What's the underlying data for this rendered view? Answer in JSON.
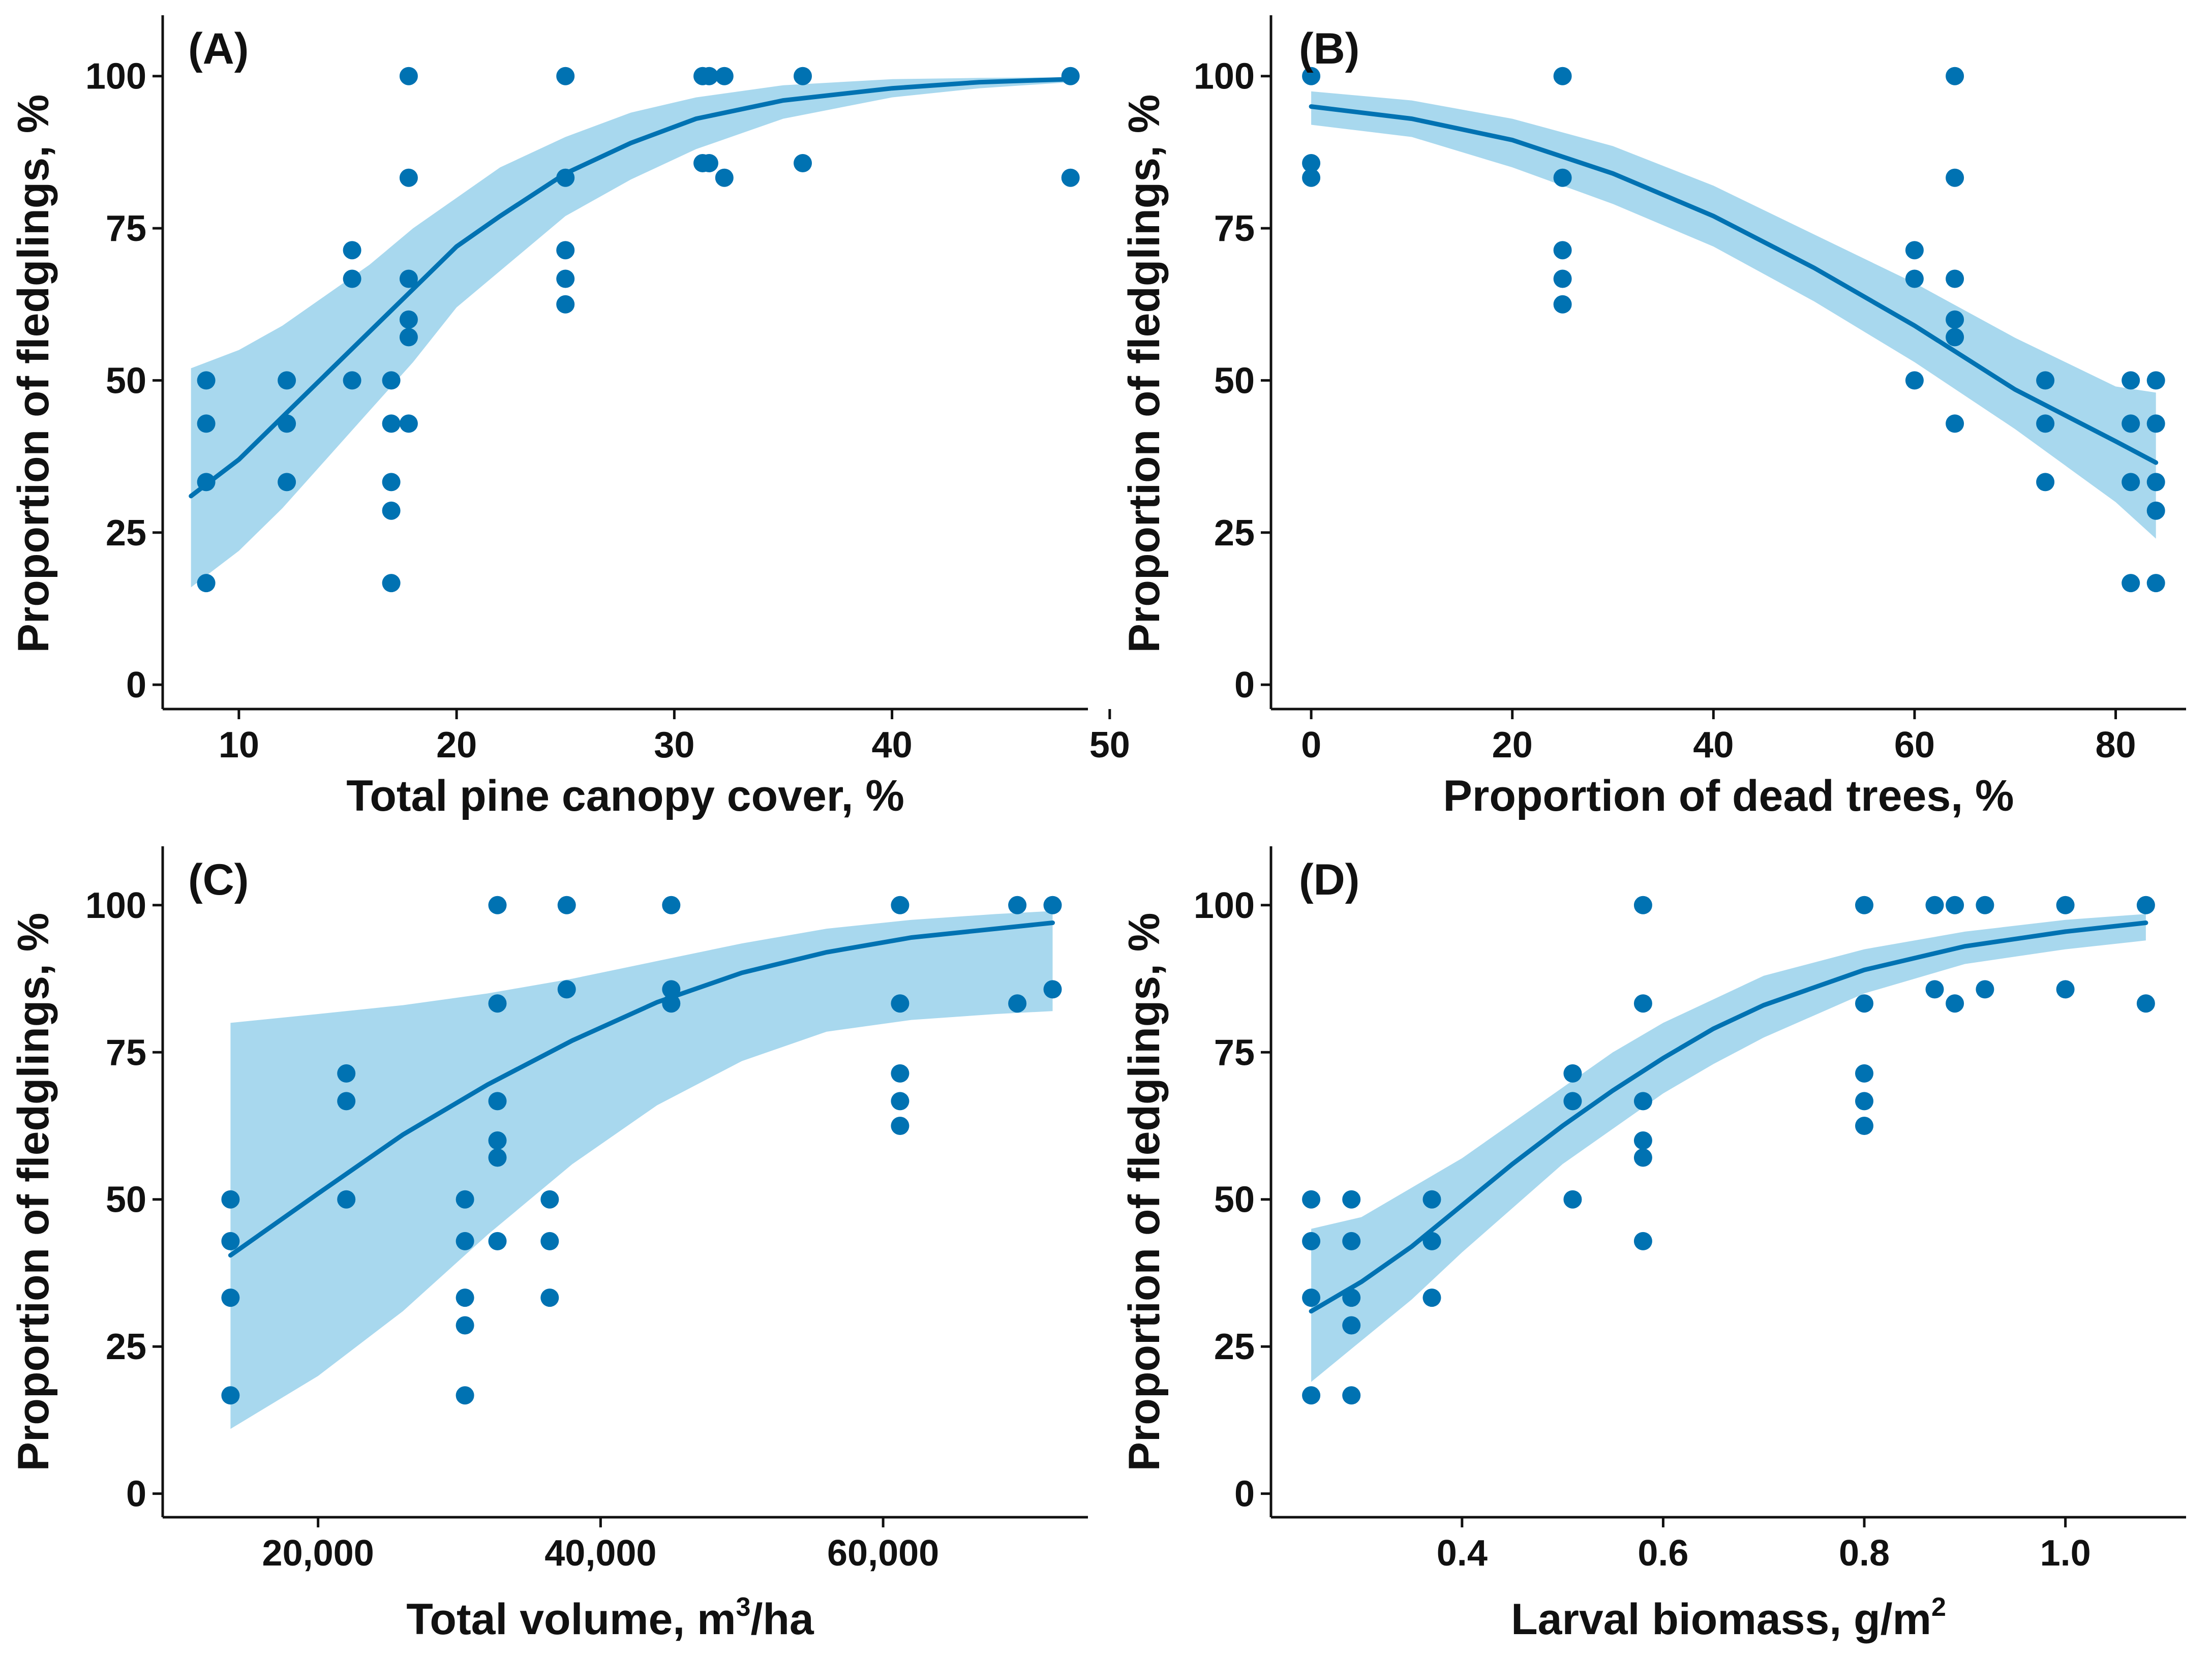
{
  "colors": {
    "point": "#0072b2",
    "line": "#0072b2",
    "band": "#a8d8ee"
  },
  "chart_data": [
    {
      "type": "scatter",
      "panel_label": "(A)",
      "xlabel": "Total pine canopy cover, %",
      "ylabel": "Proportion of fledglings, %",
      "xlim": [
        6.5,
        49
      ],
      "ylim": [
        -4,
        110
      ],
      "x_ticks": [
        10,
        20,
        30,
        40,
        50
      ],
      "x_tick_labels": [
        "10",
        "20",
        "30",
        "40",
        "50"
      ],
      "y_ticks": [
        0,
        25,
        50,
        75,
        100
      ],
      "y_tick_labels": [
        "0",
        "25",
        "50",
        "75",
        "100"
      ],
      "points": [
        [
          8.5,
          50
        ],
        [
          8.5,
          42.9
        ],
        [
          8.5,
          33.3
        ],
        [
          8.5,
          16.7
        ],
        [
          12.2,
          50
        ],
        [
          12.2,
          42.9
        ],
        [
          12.2,
          33.3
        ],
        [
          15.2,
          71.4
        ],
        [
          15.2,
          66.7
        ],
        [
          15.2,
          50
        ],
        [
          17.0,
          50
        ],
        [
          17.0,
          42.9
        ],
        [
          17.0,
          33.3
        ],
        [
          17.0,
          28.6
        ],
        [
          17.0,
          16.7
        ],
        [
          17.8,
          100
        ],
        [
          17.8,
          83.3
        ],
        [
          17.8,
          66.7
        ],
        [
          17.8,
          60
        ],
        [
          17.8,
          57.1
        ],
        [
          17.8,
          42.9
        ],
        [
          25.0,
          100
        ],
        [
          25.0,
          83.3
        ],
        [
          25.0,
          71.4
        ],
        [
          25.0,
          66.7
        ],
        [
          25.0,
          62.5
        ],
        [
          31.3,
          100
        ],
        [
          31.6,
          100
        ],
        [
          31.3,
          85.7
        ],
        [
          31.6,
          85.7
        ],
        [
          32.3,
          100
        ],
        [
          32.3,
          83.3
        ],
        [
          35.9,
          100
        ],
        [
          35.9,
          85.7
        ],
        [
          48.2,
          100
        ],
        [
          48.2,
          83.3
        ]
      ],
      "fit": {
        "x": [
          7.8,
          10,
          12,
          14,
          16,
          18,
          20,
          22,
          25,
          28,
          31,
          35,
          40,
          44,
          48.2
        ],
        "y": [
          31,
          37,
          44,
          51,
          58,
          65,
          72,
          77,
          84,
          89,
          93,
          96,
          98,
          99,
          99.5
        ],
        "lower": [
          16,
          22,
          29,
          37,
          45,
          53,
          62,
          68,
          77,
          83,
          88,
          93,
          96.5,
          98,
          99
        ],
        "upper": [
          52,
          55,
          59,
          64,
          69,
          75,
          80,
          85,
          90,
          94,
          96.5,
          98.5,
          99.5,
          99.7,
          99.8
        ]
      }
    },
    {
      "type": "scatter",
      "panel_label": "(B)",
      "xlabel": "Proportion of dead trees, %",
      "ylabel": "Proportion of fledglings, %",
      "xlim": [
        -4,
        87
      ],
      "ylim": [
        -4,
        110
      ],
      "x_ticks": [
        0,
        20,
        40,
        60,
        80
      ],
      "x_tick_labels": [
        "0",
        "20",
        "40",
        "60",
        "80"
      ],
      "y_ticks": [
        0,
        25,
        50,
        75,
        100
      ],
      "y_tick_labels": [
        "0",
        "25",
        "50",
        "75",
        "100"
      ],
      "points": [
        [
          0,
          100
        ],
        [
          0,
          85.7
        ],
        [
          0,
          83.3
        ],
        [
          25,
          100
        ],
        [
          25,
          83.3
        ],
        [
          25,
          71.4
        ],
        [
          25,
          66.7
        ],
        [
          25,
          62.5
        ],
        [
          60,
          71.4
        ],
        [
          60,
          66.7
        ],
        [
          60,
          50
        ],
        [
          64,
          100
        ],
        [
          64,
          83.3
        ],
        [
          64,
          66.7
        ],
        [
          64,
          60
        ],
        [
          64,
          57.1
        ],
        [
          64,
          42.9
        ],
        [
          73,
          50
        ],
        [
          73,
          42.9
        ],
        [
          73,
          33.3
        ],
        [
          81.5,
          50
        ],
        [
          81.5,
          42.9
        ],
        [
          81.5,
          33.3
        ],
        [
          81.5,
          16.7
        ],
        [
          84,
          50
        ],
        [
          84,
          42.9
        ],
        [
          84,
          33.3
        ],
        [
          84,
          28.6
        ],
        [
          84,
          16.7
        ]
      ],
      "fit": {
        "x": [
          0,
          10,
          20,
          30,
          40,
          50,
          60,
          70,
          80,
          84
        ],
        "y": [
          95,
          93,
          89.5,
          84,
          77,
          68.5,
          59,
          48.5,
          40,
          36.5
        ],
        "lower": [
          92,
          90,
          85,
          79,
          72,
          63,
          53,
          42,
          30,
          24
        ],
        "upper": [
          97.5,
          96,
          93,
          88.5,
          82,
          74,
          66,
          57,
          49,
          48
        ]
      }
    },
    {
      "type": "scatter",
      "panel_label": "(C)",
      "xlabel": "Total volume, m",
      "xlabel_sup": "3",
      "xlabel_suffix": "/ha",
      "ylabel": "Proportion of fledglings, %",
      "xlim": [
        9000,
        74500
      ],
      "ylim": [
        -4,
        110
      ],
      "x_ticks": [
        20000,
        40000,
        60000
      ],
      "x_tick_labels": [
        "20,000",
        "40,000",
        "60,000"
      ],
      "y_ticks": [
        0,
        25,
        50,
        75,
        100
      ],
      "y_tick_labels": [
        "0",
        "25",
        "50",
        "75",
        "100"
      ],
      "points": [
        [
          13800,
          50
        ],
        [
          13800,
          42.9
        ],
        [
          13800,
          33.3
        ],
        [
          13800,
          16.7
        ],
        [
          22000,
          71.4
        ],
        [
          22000,
          66.7
        ],
        [
          22000,
          50
        ],
        [
          30400,
          50
        ],
        [
          30400,
          42.9
        ],
        [
          30400,
          33.3
        ],
        [
          30400,
          28.6
        ],
        [
          30400,
          16.7
        ],
        [
          32700,
          100
        ],
        [
          32700,
          83.3
        ],
        [
          32700,
          66.7
        ],
        [
          32700,
          60
        ],
        [
          32700,
          57.1
        ],
        [
          32700,
          42.9
        ],
        [
          36400,
          50
        ],
        [
          36400,
          42.9
        ],
        [
          36400,
          33.3
        ],
        [
          37600,
          100
        ],
        [
          37600,
          85.7
        ],
        [
          45000,
          100
        ],
        [
          45000,
          85.7
        ],
        [
          45000,
          83.3
        ],
        [
          61200,
          100
        ],
        [
          61200,
          83.3
        ],
        [
          61200,
          71.4
        ],
        [
          61200,
          66.7
        ],
        [
          61200,
          62.5
        ],
        [
          69500,
          100
        ],
        [
          69500,
          83.3
        ],
        [
          72000,
          100
        ],
        [
          72000,
          85.7
        ]
      ],
      "fit": {
        "x": [
          13800,
          20000,
          26000,
          32000,
          38000,
          44000,
          50000,
          56000,
          62000,
          68000,
          72000
        ],
        "y": [
          40.5,
          51,
          61,
          69.5,
          77,
          83.5,
          88.5,
          92,
          94.5,
          96,
          97
        ],
        "lower": [
          11,
          20,
          31,
          44,
          56,
          66,
          73.5,
          78.5,
          80.5,
          81.5,
          82
        ],
        "upper": [
          80,
          81.5,
          83,
          85,
          87.5,
          90.5,
          93.5,
          96,
          97.5,
          98.5,
          99
        ]
      }
    },
    {
      "type": "scatter",
      "panel_label": "(D)",
      "xlabel": "Larval biomass, g/m",
      "xlabel_sup": "2",
      "xlabel_suffix": "",
      "ylabel": "Proportion of fledglings, %",
      "xlim": [
        0.21,
        1.12
      ],
      "ylim": [
        -4,
        110
      ],
      "x_ticks": [
        0.4,
        0.6,
        0.8,
        1.0
      ],
      "x_tick_labels": [
        "0.4",
        "0.6",
        "0.8",
        "1.0"
      ],
      "y_ticks": [
        0,
        25,
        50,
        75,
        100
      ],
      "y_tick_labels": [
        "0",
        "25",
        "50",
        "75",
        "100"
      ],
      "points": [
        [
          0.25,
          50
        ],
        [
          0.25,
          42.9
        ],
        [
          0.25,
          33.3
        ],
        [
          0.25,
          16.7
        ],
        [
          0.29,
          50
        ],
        [
          0.29,
          42.9
        ],
        [
          0.29,
          33.3
        ],
        [
          0.29,
          28.6
        ],
        [
          0.29,
          16.7
        ],
        [
          0.37,
          50
        ],
        [
          0.37,
          42.9
        ],
        [
          0.37,
          33.3
        ],
        [
          0.51,
          71.4
        ],
        [
          0.51,
          66.7
        ],
        [
          0.51,
          50
        ],
        [
          0.58,
          100
        ],
        [
          0.58,
          83.3
        ],
        [
          0.58,
          66.7
        ],
        [
          0.58,
          60
        ],
        [
          0.58,
          57.1
        ],
        [
          0.58,
          42.9
        ],
        [
          0.8,
          100
        ],
        [
          0.8,
          83.3
        ],
        [
          0.8,
          71.4
        ],
        [
          0.8,
          66.7
        ],
        [
          0.8,
          62.5
        ],
        [
          0.87,
          100
        ],
        [
          0.87,
          85.7
        ],
        [
          0.89,
          100
        ],
        [
          0.89,
          83.3
        ],
        [
          0.92,
          100
        ],
        [
          0.92,
          85.7
        ],
        [
          1.0,
          100
        ],
        [
          1.0,
          85.7
        ],
        [
          1.08,
          100
        ],
        [
          1.08,
          83.3
        ]
      ],
      "fit": {
        "x": [
          0.25,
          0.3,
          0.35,
          0.4,
          0.45,
          0.5,
          0.55,
          0.6,
          0.65,
          0.7,
          0.8,
          0.9,
          1.0,
          1.08
        ],
        "y": [
          31,
          36,
          42,
          49,
          56,
          62.5,
          68.5,
          74,
          79,
          83,
          89,
          93,
          95.5,
          97
        ],
        "lower": [
          19,
          26,
          33,
          41,
          48.5,
          56,
          62,
          68,
          73,
          77.5,
          85,
          90,
          92.5,
          94
        ],
        "upper": [
          45,
          47,
          52,
          57,
          63,
          69,
          75,
          80,
          84,
          88,
          92.5,
          95.5,
          97.5,
          98.5
        ]
      }
    }
  ]
}
